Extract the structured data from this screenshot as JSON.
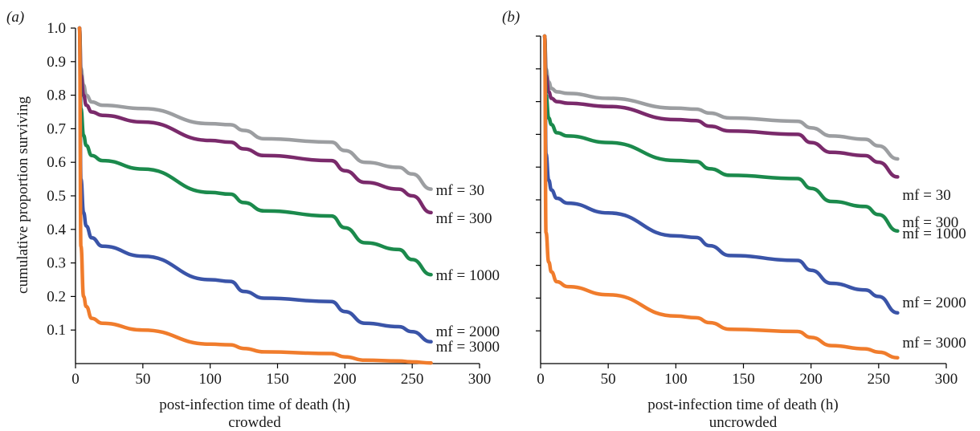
{
  "figure": {
    "ylabel": "cumulative proportion surviving",
    "xlabel": "post-infection time of death (h)",
    "colors": {
      "mf = 30": "#9c9ea1",
      "mf = 300": "#7a2a6b",
      "mf = 1000": "#1b8a4c",
      "mf = 2000": "#3a54a8",
      "mf = 3000": "#f07c2c"
    }
  },
  "chart_data": [
    {
      "type": "line",
      "panel_label": "(a)",
      "subtitle": "crowded",
      "xlabel": "post-infection time of death (h)",
      "ylabel": "cumulative proportion surviving",
      "xlim": [
        0,
        300
      ],
      "ylim": [
        0,
        1.0
      ],
      "xticks": [
        "0",
        "50",
        "100",
        "150",
        "200",
        "250",
        "300"
      ],
      "yticks": [
        "0.1",
        "0.2",
        "0.3",
        "0.4",
        "0.5",
        "0.6",
        "0.7",
        "0.8",
        "0.9",
        "1.0"
      ],
      "grid": false,
      "series": [
        {
          "name": "mf = 30",
          "color": "#9c9ea1",
          "x": [
            3,
            4,
            6,
            8,
            12,
            20,
            50,
            100,
            115,
            125,
            140,
            190,
            200,
            215,
            240,
            250,
            264
          ],
          "y": [
            1.0,
            0.88,
            0.83,
            0.8,
            0.78,
            0.77,
            0.76,
            0.715,
            0.712,
            0.695,
            0.67,
            0.66,
            0.635,
            0.6,
            0.585,
            0.565,
            0.52
          ]
        },
        {
          "name": "mf = 300",
          "color": "#7a2a6b",
          "x": [
            3,
            4,
            6,
            8,
            12,
            20,
            50,
            100,
            115,
            125,
            140,
            190,
            200,
            215,
            240,
            250,
            264
          ],
          "y": [
            1.0,
            0.86,
            0.8,
            0.77,
            0.75,
            0.74,
            0.72,
            0.665,
            0.66,
            0.64,
            0.62,
            0.605,
            0.575,
            0.54,
            0.52,
            0.5,
            0.45
          ]
        },
        {
          "name": "mf = 1000",
          "color": "#1b8a4c",
          "x": [
            3,
            4,
            6,
            8,
            12,
            20,
            50,
            100,
            115,
            125,
            140,
            190,
            200,
            215,
            240,
            250,
            264
          ],
          "y": [
            1.0,
            0.76,
            0.68,
            0.65,
            0.62,
            0.605,
            0.58,
            0.51,
            0.505,
            0.48,
            0.455,
            0.44,
            0.405,
            0.36,
            0.34,
            0.31,
            0.265
          ]
        },
        {
          "name": "mf = 2000",
          "color": "#3a54a8",
          "x": [
            3,
            4,
            6,
            8,
            12,
            20,
            50,
            100,
            115,
            125,
            140,
            190,
            200,
            215,
            240,
            250,
            264
          ],
          "y": [
            1.0,
            0.55,
            0.45,
            0.41,
            0.375,
            0.35,
            0.32,
            0.25,
            0.245,
            0.215,
            0.195,
            0.185,
            0.155,
            0.12,
            0.11,
            0.095,
            0.065
          ]
        },
        {
          "name": "mf = 3000",
          "color": "#f07c2c",
          "x": [
            3,
            4,
            6,
            8,
            12,
            20,
            50,
            100,
            115,
            125,
            140,
            190,
            200,
            215,
            240,
            250,
            264
          ],
          "y": [
            1.0,
            0.35,
            0.2,
            0.17,
            0.135,
            0.12,
            0.1,
            0.058,
            0.056,
            0.045,
            0.035,
            0.03,
            0.02,
            0.01,
            0.008,
            0.005,
            0.002
          ]
        }
      ]
    },
    {
      "type": "line",
      "panel_label": "(b)",
      "subtitle": "uncrowded",
      "xlabel": "post-infection time of death (h)",
      "ylabel": "",
      "xlim": [
        0,
        300
      ],
      "ylim": [
        0,
        1.0
      ],
      "xticks": [
        "0",
        "50",
        "100",
        "150",
        "200",
        "250",
        "300"
      ],
      "yticks": [],
      "grid": false,
      "series": [
        {
          "name": "mf = 30",
          "color": "#9c9ea1",
          "x": [
            3,
            4,
            6,
            8,
            12,
            20,
            50,
            100,
            115,
            125,
            140,
            190,
            200,
            215,
            240,
            250,
            264
          ],
          "y": [
            1.0,
            0.9,
            0.86,
            0.84,
            0.83,
            0.825,
            0.81,
            0.78,
            0.777,
            0.765,
            0.75,
            0.74,
            0.72,
            0.695,
            0.685,
            0.665,
            0.625
          ]
        },
        {
          "name": "mf = 300",
          "color": "#7a2a6b",
          "x": [
            3,
            4,
            6,
            8,
            12,
            20,
            50,
            100,
            115,
            125,
            140,
            190,
            200,
            215,
            240,
            250,
            264
          ],
          "y": [
            1.0,
            0.88,
            0.83,
            0.81,
            0.8,
            0.795,
            0.785,
            0.745,
            0.742,
            0.725,
            0.71,
            0.7,
            0.675,
            0.645,
            0.635,
            0.615,
            0.57
          ]
        },
        {
          "name": "mf = 1000",
          "color": "#1b8a4c",
          "x": [
            3,
            4,
            6,
            8,
            12,
            20,
            50,
            100,
            115,
            125,
            140,
            190,
            200,
            215,
            240,
            250,
            264
          ],
          "y": [
            1.0,
            0.82,
            0.75,
            0.73,
            0.705,
            0.695,
            0.675,
            0.62,
            0.617,
            0.595,
            0.575,
            0.565,
            0.535,
            0.495,
            0.48,
            0.455,
            0.405
          ]
        },
        {
          "name": "mf = 2000",
          "color": "#3a54a8",
          "x": [
            3,
            4,
            6,
            8,
            12,
            20,
            50,
            100,
            115,
            125,
            140,
            190,
            200,
            215,
            240,
            250,
            264
          ],
          "y": [
            1.0,
            0.64,
            0.56,
            0.53,
            0.505,
            0.49,
            0.46,
            0.39,
            0.385,
            0.36,
            0.33,
            0.315,
            0.285,
            0.245,
            0.225,
            0.205,
            0.155
          ]
        },
        {
          "name": "mf = 3000",
          "color": "#f07c2c",
          "x": [
            3,
            4,
            6,
            8,
            12,
            20,
            50,
            100,
            115,
            125,
            140,
            190,
            200,
            215,
            240,
            250,
            264
          ],
          "y": [
            1.0,
            0.4,
            0.31,
            0.28,
            0.25,
            0.235,
            0.21,
            0.145,
            0.14,
            0.125,
            0.105,
            0.098,
            0.08,
            0.055,
            0.045,
            0.035,
            0.018
          ]
        }
      ]
    }
  ]
}
